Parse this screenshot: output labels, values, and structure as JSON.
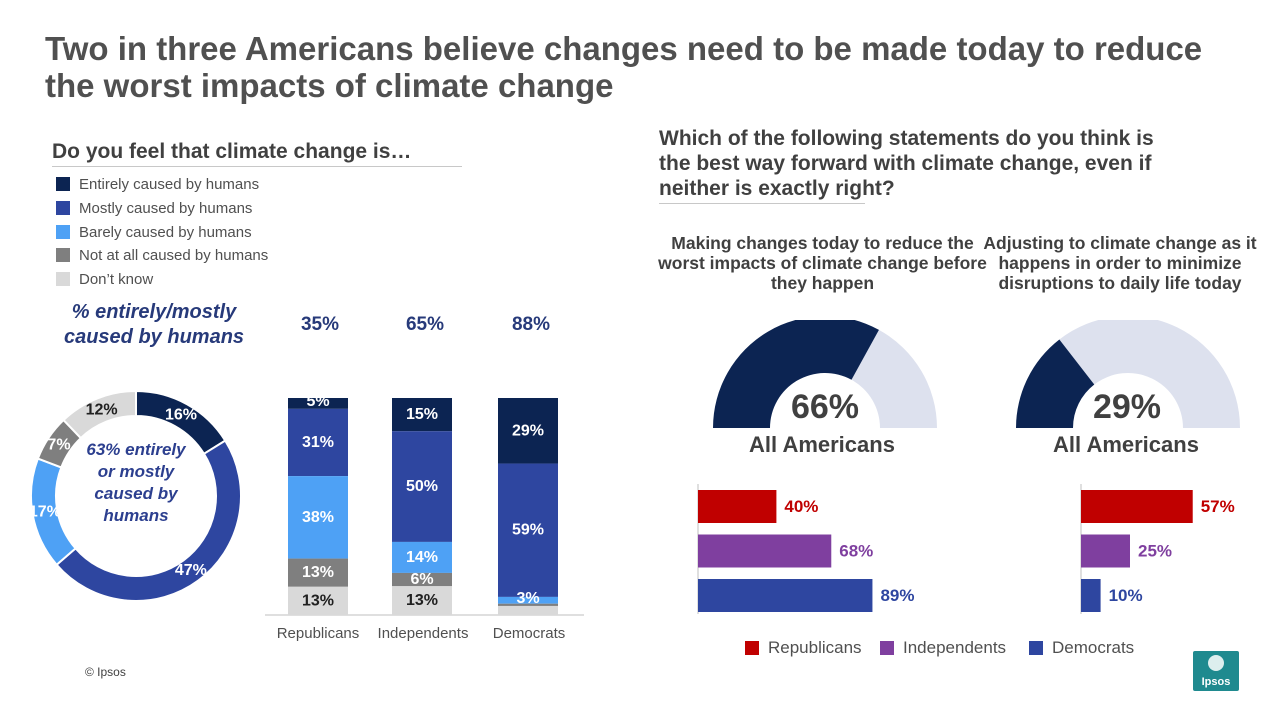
{
  "title": "Two in three Americans believe changes need to be made today to reduce the worst impacts of climate change",
  "left": {
    "question": "Do you feel that climate change is…",
    "legend": [
      {
        "label": "Entirely caused by humans",
        "color": "#0c2452"
      },
      {
        "label": "Mostly caused by humans",
        "color": "#2e46a0"
      },
      {
        "label": "Barely caused by humans",
        "color": "#4ea1f5"
      },
      {
        "label": "Not at all caused by humans",
        "color": "#7f7f7f"
      },
      {
        "label": "Don’t know",
        "color": "#d9d9d9"
      }
    ],
    "pct_caption": "% entirely/mostly caused by humans",
    "donut_center_text": "63% entirely or mostly caused by humans"
  },
  "right": {
    "question": "Which of the following statements do you think is the best way forward with climate change, even if neither is exactly right?",
    "options": [
      {
        "label": "Making changes today to reduce the worst impacts of climate change before they happen",
        "all_americans_pct": "66%",
        "all_americans_label": "All Americans"
      },
      {
        "label": "Adjusting to climate change as it happens in order to minimize disruptions to daily life today",
        "all_americans_pct": "29%",
        "all_americans_label": "All Americans"
      }
    ],
    "legend": [
      {
        "label": "Republicans",
        "color": "#c00000"
      },
      {
        "label": "Independents",
        "color": "#7f3f9f"
      },
      {
        "label": "Democrats",
        "color": "#2e46a0"
      }
    ]
  },
  "footer": {
    "copyright": "© Ipsos",
    "logo_text": "Ipsos",
    "logo_color": "#1f8a8f"
  },
  "chart_data": [
    {
      "type": "pie",
      "subtype": "donut",
      "categories": [
        "Entirely caused by humans",
        "Mostly caused by humans",
        "Barely caused by humans",
        "Not at all caused by humans",
        "Don’t know"
      ],
      "values": [
        16,
        47,
        17,
        7,
        12
      ],
      "labels": [
        "16%",
        "47%",
        "17%",
        "7%",
        "12%"
      ],
      "colors": [
        "#0c2452",
        "#2e46a0",
        "#4ea1f5",
        "#7f7f7f",
        "#d9d9d9"
      ]
    },
    {
      "type": "bar",
      "stacked": true,
      "categories": [
        "Republicans",
        "Independents",
        "Democrats"
      ],
      "top_labels": [
        "35%",
        "65%",
        "88%"
      ],
      "series": [
        {
          "name": "Entirely caused by humans",
          "color": "#0c2452",
          "values": [
            5,
            15,
            29
          ],
          "labels": [
            "5%",
            "15%",
            "29%"
          ]
        },
        {
          "name": "Mostly caused by humans",
          "color": "#2e46a0",
          "values": [
            31,
            50,
            59
          ],
          "labels": [
            "31%",
            "50%",
            "59%"
          ]
        },
        {
          "name": "Barely caused by humans",
          "color": "#4ea1f5",
          "values": [
            38,
            14,
            3
          ],
          "labels": [
            "38%",
            "14%",
            "3%"
          ]
        },
        {
          "name": "Not at all caused by humans",
          "color": "#7f7f7f",
          "values": [
            13,
            6,
            1
          ],
          "labels": [
            "13%",
            "6%",
            ""
          ]
        },
        {
          "name": "Don’t know",
          "color": "#d9d9d9",
          "values": [
            13,
            13,
            4
          ],
          "labels": [
            "13%",
            "13%",
            ""
          ]
        }
      ],
      "ylim": [
        0,
        100
      ]
    },
    {
      "type": "pie",
      "subtype": "gauge",
      "label": "All Americans",
      "value": 66,
      "value_label": "66%",
      "colors": [
        "#0c2452",
        "#dde1ee"
      ]
    },
    {
      "type": "pie",
      "subtype": "gauge",
      "label": "All Americans",
      "value": 29,
      "value_label": "29%",
      "colors": [
        "#0c2452",
        "#dde1ee"
      ]
    },
    {
      "type": "bar",
      "orientation": "horizontal",
      "categories": [
        "Republicans",
        "Independents",
        "Democrats"
      ],
      "values": [
        40,
        68,
        89
      ],
      "labels": [
        "40%",
        "68%",
        "89%"
      ],
      "colors": [
        "#c00000",
        "#7f3f9f",
        "#2e46a0"
      ],
      "xlim": [
        0,
        100
      ]
    },
    {
      "type": "bar",
      "orientation": "horizontal",
      "categories": [
        "Republicans",
        "Independents",
        "Democrats"
      ],
      "values": [
        57,
        25,
        10
      ],
      "labels": [
        "57%",
        "25%",
        "10%"
      ],
      "colors": [
        "#c00000",
        "#7f3f9f",
        "#2e46a0"
      ],
      "xlim": [
        0,
        100
      ]
    }
  ]
}
